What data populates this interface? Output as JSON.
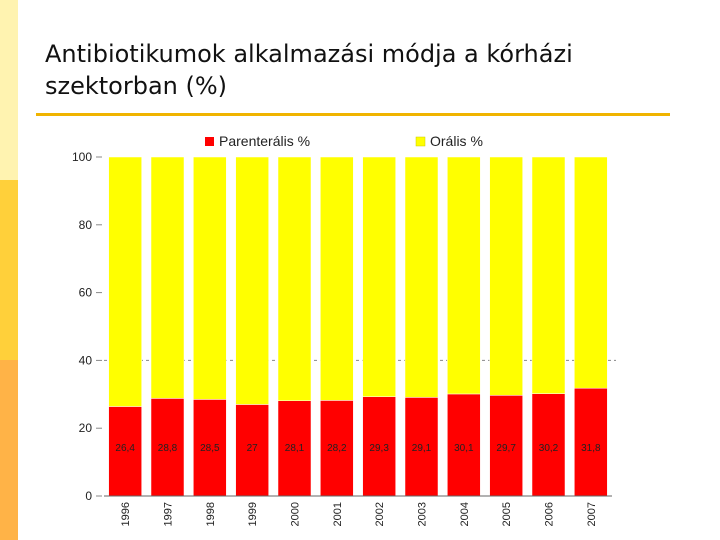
{
  "slide": {
    "title": "Antibiotikumok alkalmazási módja  a kórházi szektorban (%)",
    "colors": {
      "strip_top": "#fff3b0",
      "strip_mid": "#ffd03a",
      "strip_bottom": "#ffb347",
      "title_rule": "#f0b400"
    }
  },
  "chart_data": {
    "type": "bar",
    "stacked": true,
    "categories": [
      "1996",
      "1997",
      "1998",
      "1999",
      "2000",
      "2001",
      "2002",
      "2003",
      "2004",
      "2005",
      "2006",
      "2007"
    ],
    "series": [
      {
        "name": "Parenterális %",
        "color": "#ff0000",
        "values": [
          26.4,
          28.8,
          28.5,
          27,
          28.1,
          28.2,
          29.3,
          29.1,
          30.1,
          29.7,
          30.2,
          31.8
        ],
        "labels": [
          "26,4",
          "28,8",
          "28,5",
          "27",
          "28,1",
          "28,2",
          "29,3",
          "29,1",
          "30,1",
          "29,7",
          "30,2",
          "31,8"
        ]
      },
      {
        "name": "Orális %",
        "color": "#ffff00",
        "values": [
          73.6,
          71.2,
          71.5,
          73,
          71.9,
          71.8,
          70.7,
          70.9,
          69.9,
          70.3,
          69.8,
          68.2
        ]
      }
    ],
    "yticks": [
      "0",
      "20",
      "40",
      "60",
      "80",
      "100"
    ],
    "ylim": [
      0,
      100
    ],
    "gridline_at": 40,
    "legend_position": "top",
    "title": "",
    "xlabel": "",
    "ylabel": ""
  }
}
